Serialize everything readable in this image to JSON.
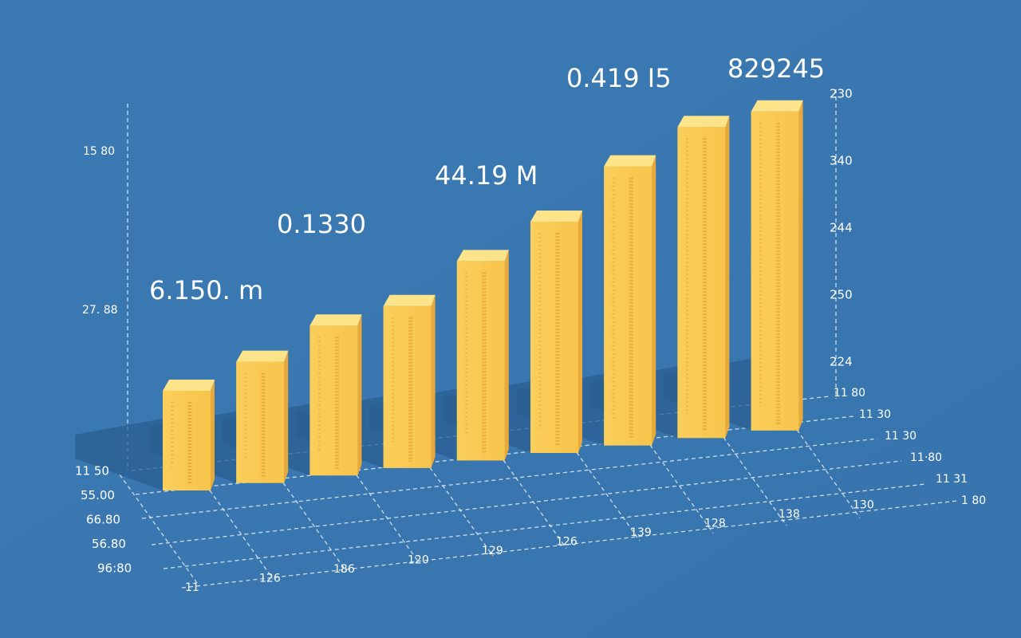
{
  "chart_data": {
    "type": "bar",
    "values": [
      125,
      152,
      188,
      203,
      250,
      290,
      350,
      390,
      400
    ],
    "ylim": [
      0,
      450
    ],
    "color": "#f9c94e",
    "annotations": [
      "6.150. m",
      "0.1330",
      "44.19 M",
      "0.419 I5",
      "829245"
    ],
    "left_axis_labels": [
      "15 80",
      "27. 88"
    ],
    "right_axis_labels": [
      "230",
      "340",
      "244",
      "250",
      "224"
    ],
    "depth_labels_left": [
      "11 50",
      "55.00",
      "66.80",
      "56.80",
      "96:80"
    ],
    "depth_labels_right": [
      "11 80",
      "11 30",
      "11 30",
      "11·80",
      "11 31",
      "1 80"
    ],
    "front_labels": [
      "11",
      "126",
      "186",
      "120",
      "129",
      "126",
      "139",
      "128",
      "138",
      "130"
    ]
  }
}
